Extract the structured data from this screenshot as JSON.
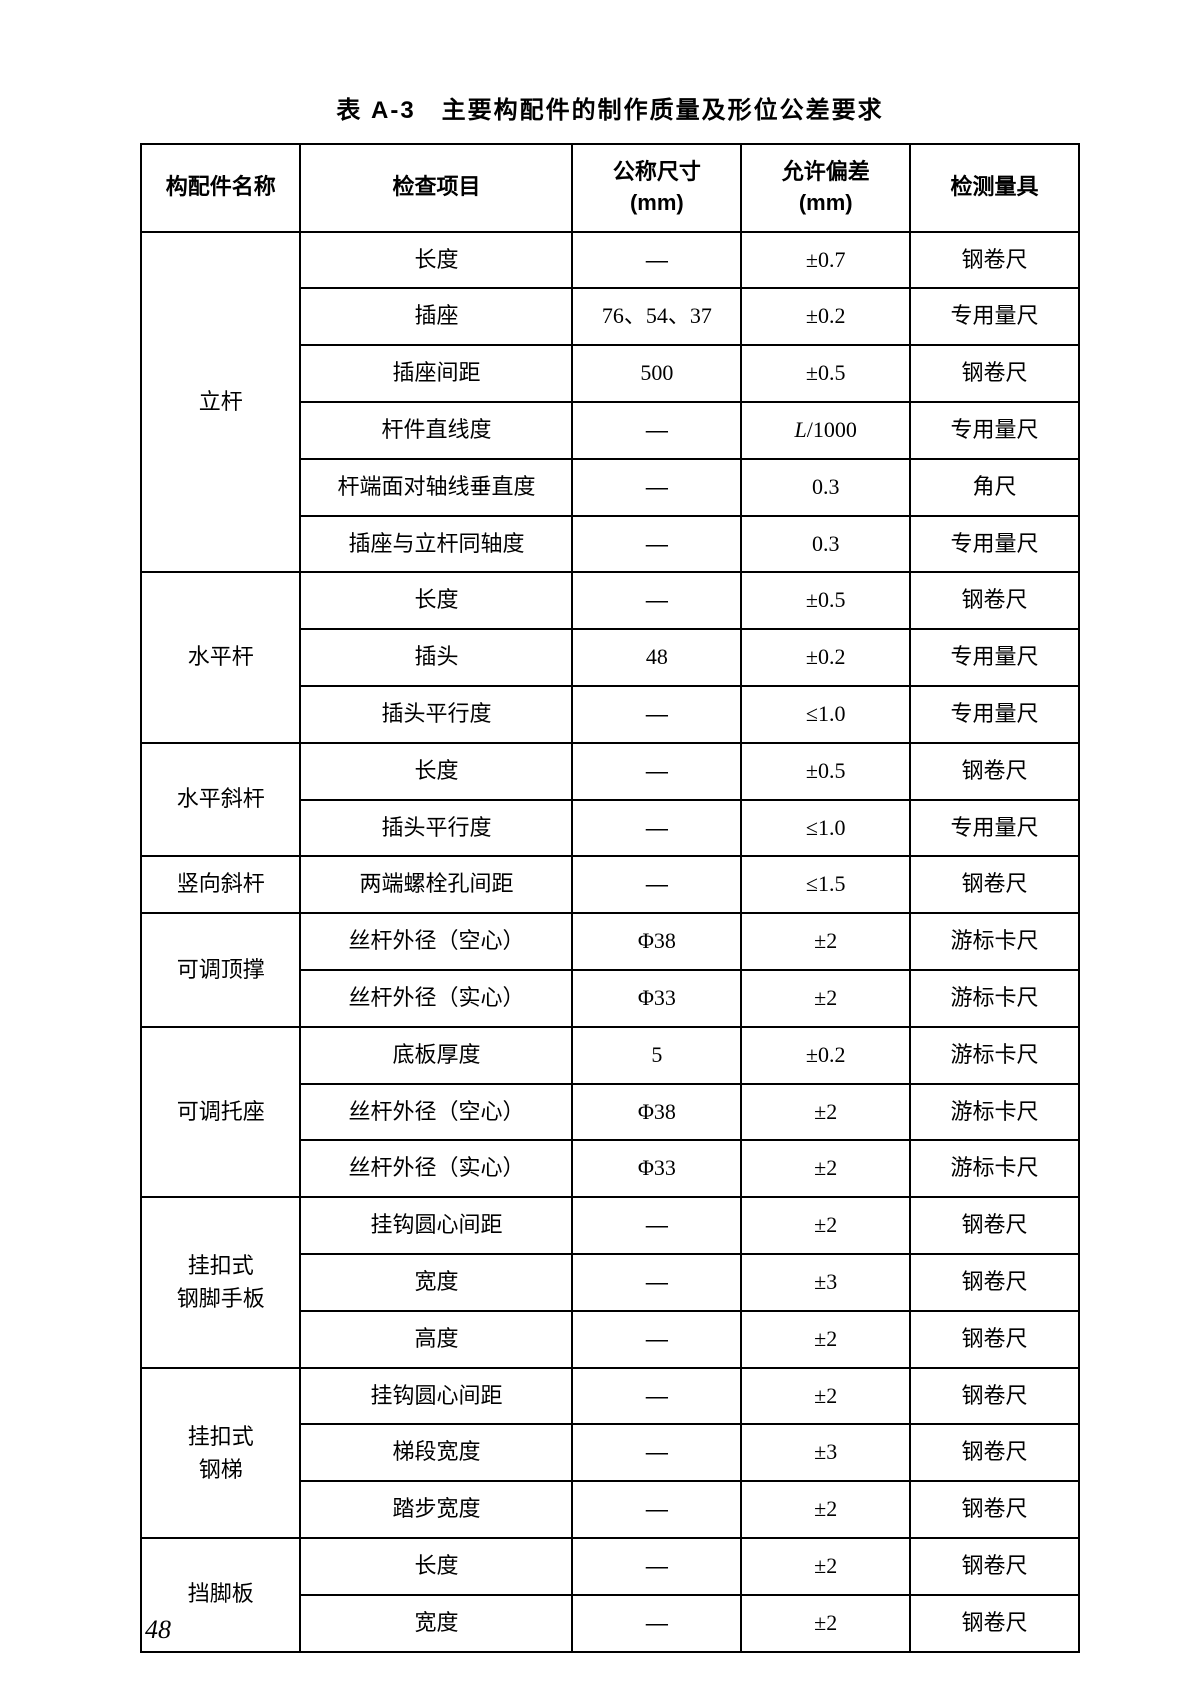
{
  "caption": "表 A-3　主要构配件的制作质量及形位公差要求",
  "page_number": "48",
  "headers": {
    "c0": "构配件名称",
    "c1": "检查项目",
    "c2_l1": "公称尺寸",
    "c2_l2": "(mm)",
    "c3_l1": "允许偏差",
    "c3_l2": "(mm)",
    "c4": "检测量具"
  },
  "groups": [
    {
      "name": "立杆",
      "rows": [
        {
          "item": "长度",
          "nominal": "—",
          "tolerance": "±0.7",
          "tool": "钢卷尺"
        },
        {
          "item": "插座",
          "nominal": "76、54、37",
          "tolerance": "±0.2",
          "tool": "专用量尺"
        },
        {
          "item": "插座间距",
          "nominal": "500",
          "tolerance": "±0.5",
          "tool": "钢卷尺"
        },
        {
          "item": "杆件直线度",
          "nominal": "—",
          "tolerance_html": "<span class='italic'>L</span>/1000",
          "tool": "专用量尺"
        },
        {
          "item": "杆端面对轴线垂直度",
          "nominal": "—",
          "tolerance": "0.3",
          "tool": "角尺"
        },
        {
          "item": "插座与立杆同轴度",
          "nominal": "—",
          "tolerance": "0.3",
          "tool": "专用量尺"
        }
      ]
    },
    {
      "name": "水平杆",
      "rows": [
        {
          "item": "长度",
          "nominal": "—",
          "tolerance": "±0.5",
          "tool": "钢卷尺"
        },
        {
          "item": "插头",
          "nominal": "48",
          "tolerance": "±0.2",
          "tool": "专用量尺"
        },
        {
          "item": "插头平行度",
          "nominal": "—",
          "tolerance": "≤1.0",
          "tool": "专用量尺"
        }
      ]
    },
    {
      "name": "水平斜杆",
      "rows": [
        {
          "item": "长度",
          "nominal": "—",
          "tolerance": "±0.5",
          "tool": "钢卷尺"
        },
        {
          "item": "插头平行度",
          "nominal": "—",
          "tolerance": "≤1.0",
          "tool": "专用量尺"
        }
      ]
    },
    {
      "name": "竖向斜杆",
      "rows": [
        {
          "item": "两端螺栓孔间距",
          "nominal": "—",
          "tolerance": "≤1.5",
          "tool": "钢卷尺"
        }
      ]
    },
    {
      "name": "可调顶撑",
      "rows": [
        {
          "item": "丝杆外径（空心）",
          "nominal": "Φ38",
          "tolerance": "±2",
          "tool": "游标卡尺"
        },
        {
          "item": "丝杆外径（实心）",
          "nominal": "Φ33",
          "tolerance": "±2",
          "tool": "游标卡尺"
        }
      ]
    },
    {
      "name": "可调托座",
      "rows": [
        {
          "item": "底板厚度",
          "nominal": "5",
          "tolerance": "±0.2",
          "tool": "游标卡尺"
        },
        {
          "item": "丝杆外径（空心）",
          "nominal": "Φ38",
          "tolerance": "±2",
          "tool": "游标卡尺"
        },
        {
          "item": "丝杆外径（实心）",
          "nominal": "Φ33",
          "tolerance": "±2",
          "tool": "游标卡尺"
        }
      ]
    },
    {
      "name_html": "挂扣式<br>钢脚手板",
      "name": "挂扣式钢脚手板",
      "rows": [
        {
          "item": "挂钩圆心间距",
          "nominal": "—",
          "tolerance": "±2",
          "tool": "钢卷尺"
        },
        {
          "item": "宽度",
          "nominal": "—",
          "tolerance": "±3",
          "tool": "钢卷尺"
        },
        {
          "item": "高度",
          "nominal": "—",
          "tolerance": "±2",
          "tool": "钢卷尺"
        }
      ]
    },
    {
      "name_html": "挂扣式<br>钢梯",
      "name": "挂扣式钢梯",
      "rows": [
        {
          "item": "挂钩圆心间距",
          "nominal": "—",
          "tolerance": "±2",
          "tool": "钢卷尺"
        },
        {
          "item": "梯段宽度",
          "nominal": "—",
          "tolerance": "±3",
          "tool": "钢卷尺"
        },
        {
          "item": "踏步宽度",
          "nominal": "—",
          "tolerance": "±2",
          "tool": "钢卷尺"
        }
      ]
    },
    {
      "name": "挡脚板",
      "rows": [
        {
          "item": "长度",
          "nominal": "—",
          "tolerance": "±2",
          "tool": "钢卷尺"
        },
        {
          "item": "宽度",
          "nominal": "—",
          "tolerance": "±2",
          "tool": "钢卷尺"
        }
      ]
    }
  ]
}
